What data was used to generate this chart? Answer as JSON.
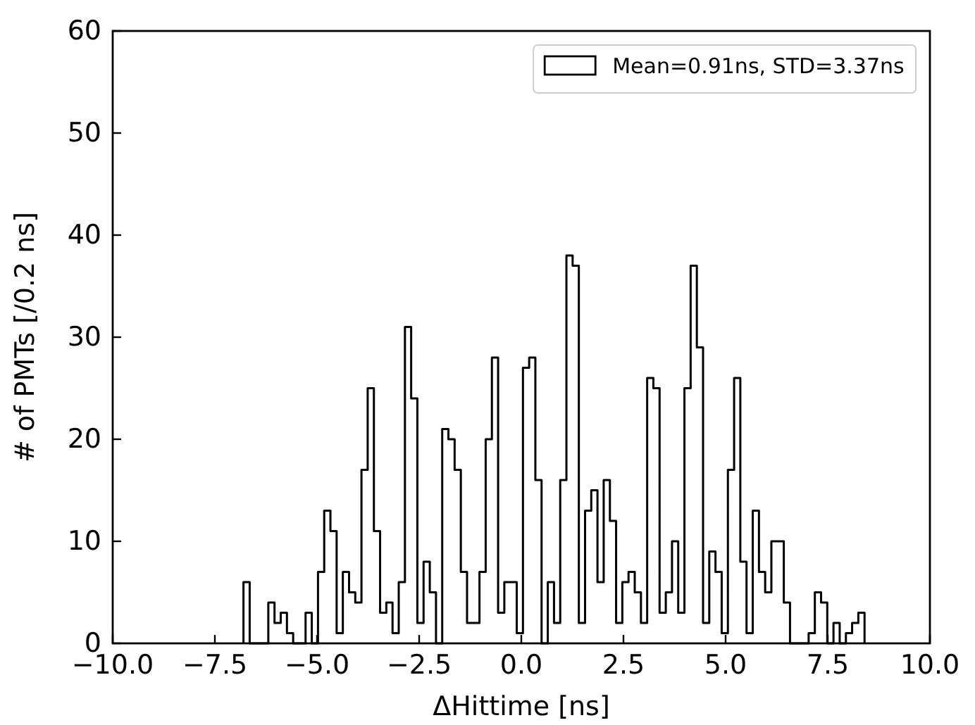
{
  "chart_data": {
    "type": "histogram",
    "xlabel": "ΔHittime [ns]",
    "ylabel": "# of PMTs [/0.2 ns]",
    "bins": [
      -6.8,
      -6.648,
      -6.496,
      -6.344,
      -6.192,
      -6.04,
      -5.888,
      -5.736,
      -5.584,
      -5.432,
      -5.28,
      -5.128,
      -4.976,
      -4.824,
      -4.672,
      -4.52,
      -4.368,
      -4.216,
      -4.064,
      -3.912,
      -3.76,
      -3.608,
      -3.456,
      -3.304,
      -3.152,
      -3.0,
      -2.848,
      -2.696,
      -2.544,
      -2.392,
      -2.24,
      -2.088,
      -1.936,
      -1.784,
      -1.632,
      -1.48,
      -1.328,
      -1.176,
      -1.024,
      -0.872,
      -0.72,
      -0.568,
      -0.416,
      -0.264,
      -0.112,
      0.04,
      0.192,
      0.344,
      0.496,
      0.648,
      0.8,
      0.952,
      1.104,
      1.256,
      1.408,
      1.56,
      1.712,
      1.864,
      2.016,
      2.168,
      2.32,
      2.472,
      2.624,
      2.776,
      2.928,
      3.08,
      3.232,
      3.384,
      3.536,
      3.688,
      3.84,
      3.992,
      4.144,
      4.296,
      4.448,
      4.6,
      4.752,
      4.904,
      5.056,
      5.208,
      5.36,
      5.512,
      5.664,
      5.816,
      5.968,
      6.12,
      6.272,
      6.424,
      6.576,
      6.728,
      6.88,
      7.032,
      7.184,
      7.336,
      7.488,
      7.64,
      7.792,
      7.944,
      8.096,
      8.248,
      8.4
    ],
    "series": [
      {
        "name": "Mean=0.91ns, STD=3.37ns",
        "color": "#000000",
        "values": [
          6,
          0,
          0,
          0,
          4,
          2,
          3,
          1,
          0,
          0,
          3,
          0,
          7,
          13,
          11,
          1,
          7,
          5,
          4,
          17,
          25,
          11,
          3,
          4,
          1,
          6,
          31,
          24,
          2,
          8,
          5,
          0,
          21,
          20,
          17,
          7,
          2,
          2,
          7,
          20,
          28,
          3,
          6,
          6,
          1,
          27,
          28,
          16,
          0,
          6,
          2,
          16,
          38,
          37,
          2,
          13,
          15,
          6,
          16,
          12,
          2,
          6,
          7,
          5,
          2,
          26,
          25,
          3,
          5,
          10,
          3,
          25,
          37,
          29,
          2,
          9,
          7,
          1,
          17,
          26,
          8,
          1,
          13,
          7,
          5,
          10,
          10,
          4,
          0,
          0,
          0,
          1,
          5,
          4,
          0,
          2,
          0,
          1,
          2,
          3
        ]
      }
    ],
    "xlim": [
      -10,
      10
    ],
    "xticks": [
      {
        "value": -10,
        "label": "−10.0"
      },
      {
        "value": -7.5,
        "label": "−7.5"
      },
      {
        "value": -5,
        "label": "−5.0"
      },
      {
        "value": -2.5,
        "label": "−2.5"
      },
      {
        "value": 0,
        "label": "0.0"
      },
      {
        "value": 2.5,
        "label": "2.5"
      },
      {
        "value": 5,
        "label": "5.0"
      },
      {
        "value": 7.5,
        "label": "7.5"
      },
      {
        "value": 10,
        "label": "10.0"
      }
    ],
    "ylim": [
      0,
      60
    ],
    "yticks": [
      0,
      10,
      20,
      30,
      40,
      50,
      60
    ],
    "legend": "top right",
    "grid": false
  }
}
